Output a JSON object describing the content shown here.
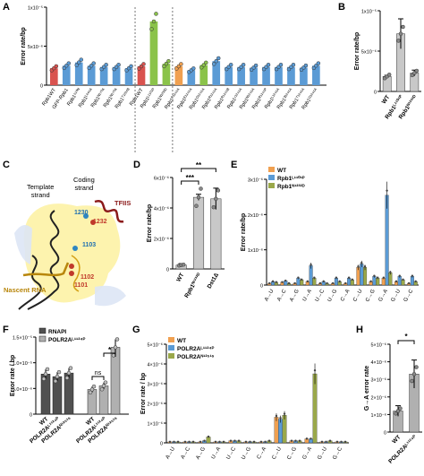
{
  "figure": {
    "panel_labels": [
      "A",
      "B",
      "C",
      "D",
      "E",
      "F",
      "G",
      "H"
    ]
  },
  "panel_c": {
    "labels": {
      "template_strand": "Template\nstrand",
      "coding_strand": "Coding\nstrand",
      "tfiis": "TFIIS",
      "nascent_rna": "Nascent RNA",
      "r1230": "1230",
      "r1232": "1232",
      "r1103": "1103",
      "r1102": "1102",
      "r1101": "1101"
    },
    "colors": {
      "tfiis": "#8b1a1a",
      "nascent": "#b8860b",
      "pol_body": "#fdf1a0",
      "template": "#222222"
    }
  },
  "colors": {
    "red": "#d9534f",
    "blue": "#5b9bd5",
    "green": "#8bc34a",
    "orange": "#f0a050",
    "gray": "#c8c8c8",
    "dgray": "#505050",
    "mgray": "#8c8c8c",
    "lgray": "#b0b0b0",
    "olive": "#9aa84a"
  },
  "chart_data": [
    {
      "panel": "A",
      "type": "bar",
      "ylabel": "Error rate/bp",
      "yticks": [
        "0",
        "5x10⁻⁶",
        "1x10⁻⁵"
      ],
      "ylim": [
        0,
        1.2e-05
      ],
      "categories": [
        "Rpb1WT",
        "GFP-Rpb1",
        "Rpb1⁵¹⁰ᴺ",
        "Rpb1ᴸ⁶⁶¹ᴬ",
        "Rpb1ᴺ¹⁷⁰ᴬ",
        "Rpb1ᴺ¹⁷⁰ᴬ",
        "Rpb1ᵀ¹²²⁶ᴮ",
        "Rpb1WT",
        "Rpb1ᴸ¹¹⁰¹ᴾ",
        "Rpb1ᴺ¹²³²ᴰ",
        "Rpb1ᴾ¹²⁴⁶ᴬ",
        "Rpb1ᴱ¹²⁴⁶ᴬ",
        "Rpb1ᴼ¹²⁴⁶ᴬ",
        "Rpb1ᴿ¹²⁴⁶ᴬ",
        "Rpb1ᴿ¹²⁴⁶ᴮ",
        "Rpb1ᶜ¹²⁴⁶ᴬ",
        "Rpb1ᴺ¹²⁴⁶ᴬ",
        "Rpb1ᴿ¹²⁴⁶ᴾ",
        "Rpb1ᴸ¹²⁴⁶ᴬ",
        "Rpb1ᴲ¹²⁴⁶ᴬ",
        "Rpb1ᵀ¹²⁴⁶ᴬ",
        "Rpb1ᴳ¹²⁴⁶ᴬ"
      ],
      "values": [
        2.6e-06,
        3e-06,
        3.5e-06,
        3e-06,
        2.8e-06,
        2.8e-06,
        2.6e-06,
        2.9e-06,
        9.8e-06,
        3.3e-06,
        2.9e-06,
        2.3e-06,
        3.1e-06,
        3.7e-06,
        2.8e-06,
        2.8e-06,
        2.7e-06,
        2.8e-06,
        2.8e-06,
        2.8e-06,
        2.7e-06,
        3e-06
      ],
      "colors": [
        "red",
        "blue",
        "blue",
        "blue",
        "blue",
        "blue",
        "blue",
        "red",
        "green",
        "green",
        "orange",
        "blue",
        "green",
        "blue",
        "blue",
        "blue",
        "blue",
        "blue",
        "blue",
        "blue",
        "blue",
        "blue"
      ],
      "dividers_after": [
        6,
        9
      ]
    },
    {
      "panel": "B",
      "type": "bar",
      "ylabel": "Error rate/bp",
      "yticks": [
        "0",
        "5x10⁻⁶",
        "1x10⁻⁵"
      ],
      "ylim": [
        0,
        1.4e-05
      ],
      "categories": [
        "WT",
        "Rpb1ᴸ¹¹⁰¹ᴾ",
        "Rpb1ᴺ¹²³²ᴰ"
      ],
      "values": [
        2.6e-06,
        1e-05,
        3.2e-06
      ],
      "errors": [
        2e-07,
        2.6e-06,
        5e-07
      ],
      "colors": [
        "gray",
        "gray",
        "gray"
      ]
    },
    {
      "panel": "D",
      "type": "bar",
      "ylabel": "Error rate/bp",
      "yticks": [
        "0",
        "2x10⁻⁶",
        "4x10⁻⁶",
        "6x10⁻⁶"
      ],
      "ylim": [
        0,
        6e-06
      ],
      "categories": [
        "WT",
        "Rpb1ᴺ¹²³²ᴰ",
        "Dst1Δ"
      ],
      "values": [
        2.5e-07,
        4.7e-06,
        4.6e-06
      ],
      "errors": [
        1e-07,
        2e-07,
        7e-07
      ],
      "colors": [
        "gray",
        "gray",
        "gray"
      ],
      "significance": [
        "***",
        "**"
      ]
    },
    {
      "panel": "E",
      "type": "bar",
      "ylabel": "Error rate/bp",
      "yticks": [
        "0",
        "1x10⁻⁶",
        "2x10⁻⁶",
        "3x10⁻⁶"
      ],
      "ylim": [
        0,
        3e-06
      ],
      "categories": [
        "A→U",
        "A→C",
        "A→G",
        "U→A",
        "U→C",
        "U→G",
        "C→A",
        "C→U",
        "C→G",
        "G→A",
        "G→U",
        "G→C"
      ],
      "series": [
        {
          "name": "WT",
          "color": "orange",
          "values": [
            5e-08,
            8e-08,
            5e-08,
            1e-07,
            5e-08,
            5e-08,
            5e-08,
            5e-07,
            1e-07,
            2e-07,
            1e-07,
            5e-08
          ]
        },
        {
          "name": "Rpb1ᴸ¹¹⁰¹ᴾ",
          "color": "blue",
          "values": [
            1e-07,
            1.2e-07,
            2e-07,
            5.5e-07,
            1e-07,
            2e-07,
            2e-07,
            6e-07,
            2.5e-07,
            2.55e-06,
            2.5e-07,
            2.5e-07
          ]
        },
        {
          "name": "Rpb1ᴺ¹²³²ᴰ",
          "color": "olive",
          "values": [
            8e-08,
            5e-08,
            1.5e-07,
            2e-07,
            5e-08,
            1e-07,
            1.5e-07,
            5e-07,
            2e-07,
            3.5e-07,
            1.5e-07,
            1e-07
          ]
        }
      ]
    },
    {
      "panel": "F",
      "type": "bar",
      "ylabel": "Error rate / bp",
      "yticks": [
        "0",
        "5.0×10⁻⁶",
        "1.0×10⁻⁵",
        "1.5×10⁻⁵"
      ],
      "ylim": [
        0,
        1.5e-05
      ],
      "legend": [
        "RNAPI",
        "POLR2Aᴸ¹¹²⁴ᴾ"
      ],
      "groups": [
        {
          "categories": [
            "WT",
            "POLR2Aᴸ¹¹²⁴ᴾ",
            "POLR2Aᴺ¹²⁵¹ˢ"
          ],
          "values": [
            7.8e-06,
            7.3e-06,
            8e-06
          ],
          "color": "dgray"
        },
        {
          "categories": [
            "WT",
            "POLR2Aᴸ¹¹²⁴ᴾ",
            "POLR2Aᴺ¹²⁵¹ˢ"
          ],
          "values": [
            4.8e-06,
            5.5e-06,
            1.3e-05
          ],
          "color": "lgray"
        }
      ],
      "significance": [
        "ns",
        "*"
      ]
    },
    {
      "panel": "G",
      "type": "bar",
      "ylabel": "Error rate / bp",
      "yticks": [
        "0",
        "1×10⁻⁶",
        "2×10⁻⁶",
        "3×10⁻⁶",
        "4×10⁻⁶",
        "5×10⁻⁶"
      ],
      "ylim": [
        0,
        5e-06
      ],
      "categories": [
        "A→U",
        "A→C",
        "A→G",
        "U→A",
        "U→C",
        "U→G",
        "C→A",
        "C→U",
        "C→G",
        "G→A",
        "G→U",
        "G→C"
      ],
      "series": [
        {
          "name": "WT",
          "color": "orange",
          "values": [
            5e-08,
            5e-08,
            5e-08,
            5e-08,
            1e-07,
            5e-08,
            5e-08,
            1.3e-06,
            1e-07,
            2e-07,
            5e-08,
            5e-08
          ]
        },
        {
          "name": "POLR2Aᴸ¹¹²⁴ᴾ",
          "color": "blue",
          "values": [
            5e-08,
            5e-08,
            1e-07,
            5e-08,
            1e-07,
            5e-08,
            5e-08,
            1.2e-06,
            1e-07,
            2e-07,
            5e-08,
            5e-08
          ]
        },
        {
          "name": "POLR2Aᴺ¹²⁵¹ˢ",
          "color": "olive",
          "values": [
            5e-08,
            5e-08,
            3e-07,
            5e-08,
            1e-07,
            5e-08,
            1e-07,
            1.4e-06,
            1e-07,
            3.5e-06,
            1e-07,
            5e-08
          ]
        }
      ]
    },
    {
      "panel": "H",
      "type": "bar",
      "ylabel": "G→A error rate",
      "yticks": [
        "0",
        "1×10⁻⁶",
        "2×10⁻⁶",
        "3×10⁻⁶",
        "4×10⁻⁶",
        "5×10⁻⁶"
      ],
      "ylim": [
        0,
        5e-06
      ],
      "categories": [
        "WT",
        "POLR2Aᴸ¹¹²⁴ᴾ"
      ],
      "values": [
        1.2e-06,
        3.3e-06
      ],
      "errors": [
        3e-07,
        8e-07
      ],
      "colors": [
        "lgray",
        "lgray"
      ],
      "significance": [
        "*"
      ]
    }
  ]
}
